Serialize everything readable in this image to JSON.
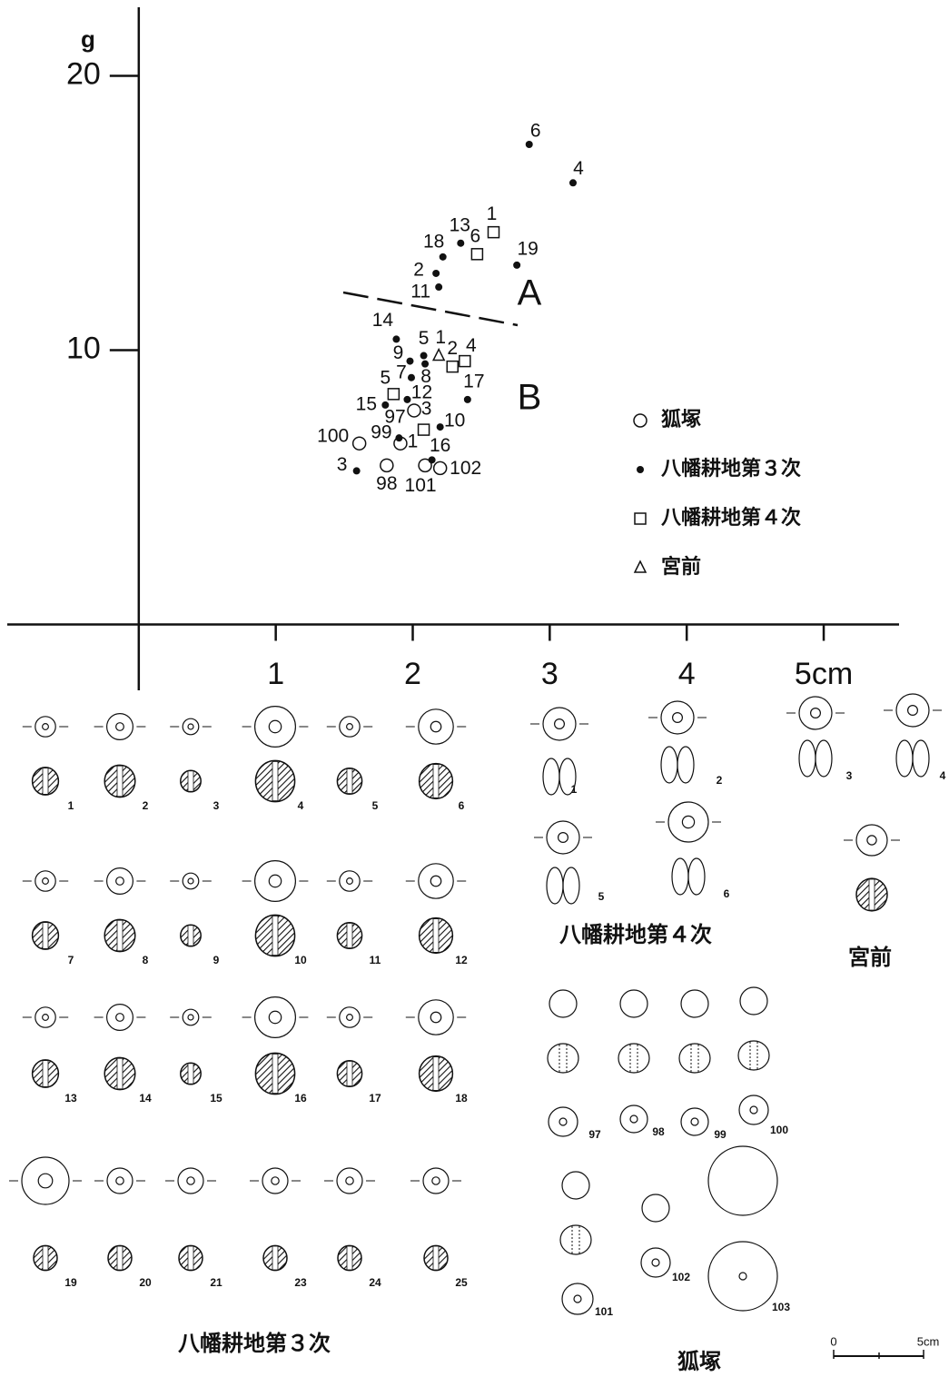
{
  "chart_data": {
    "type": "scatter",
    "y_label": "g",
    "xlim": [
      -0.96,
      5.55
    ],
    "ylim": [
      -2.4,
      22.5
    ],
    "xticks": [
      1,
      2,
      3,
      4,
      {
        "value": 5,
        "label": "5cm"
      }
    ],
    "yticks": [
      10,
      20
    ],
    "annotations": [
      "A",
      "B"
    ],
    "series": [
      {
        "name": "狐塚",
        "marker": "circle-open",
        "color": "#111",
        "x": [
          2.01,
          1.81,
          1.91,
          1.61,
          2.09,
          2.2
        ],
        "y": [
          7.8,
          5.8,
          6.6,
          6.6,
          5.8,
          5.7
        ],
        "labels": [
          "97",
          "98",
          "99",
          "100",
          "101",
          "102"
        ]
      },
      {
        "name": "八幡耕地第３次",
        "marker": "dot",
        "color": "#111",
        "x": [
          1.9,
          2.17,
          1.59,
          3.17,
          2.08,
          2.85,
          1.99,
          2.09,
          1.98,
          2.2,
          2.19,
          1.96,
          2.35,
          1.88,
          1.8,
          2.14,
          2.4,
          2.22,
          2.76
        ],
        "y": [
          6.8,
          12.8,
          5.6,
          16.1,
          9.8,
          17.5,
          9.0,
          9.5,
          9.6,
          7.2,
          12.3,
          8.2,
          13.9,
          10.4,
          8.0,
          6.0,
          8.2,
          13.4,
          13.1
        ],
        "labels": [
          "1",
          "2",
          "3",
          "4",
          "5",
          "6",
          "7",
          "8",
          "9",
          "10",
          "11",
          "12",
          "13",
          "14",
          "15",
          "16",
          "17",
          "18",
          "19"
        ]
      },
      {
        "name": "八幡耕地第４次",
        "marker": "square-open",
        "color": "#111",
        "x": [
          2.59,
          2.29,
          2.08,
          2.38,
          1.86,
          2.47
        ],
        "y": [
          14.3,
          9.4,
          7.1,
          9.6,
          8.4,
          13.5
        ],
        "labels": [
          "1",
          "2",
          "3",
          "4",
          "5",
          "6"
        ]
      },
      {
        "name": "宮前",
        "marker": "triangle-open",
        "color": "#111",
        "x": [
          2.19
        ],
        "y": [
          9.8
        ],
        "labels": [
          "1"
        ]
      }
    ]
  },
  "figures": {
    "yawata3": {
      "title": "八幡耕地第３次",
      "items": [
        "1",
        "2",
        "3",
        "4",
        "5",
        "6",
        "7",
        "8",
        "9",
        "10",
        "11",
        "12",
        "13",
        "14",
        "15",
        "16",
        "17",
        "18",
        "19",
        "20",
        "21",
        "23",
        "24",
        "25"
      ]
    },
    "yawata4": {
      "title": "八幡耕地第４次",
      "items": [
        "1",
        "2",
        "3",
        "4",
        "5",
        "6"
      ]
    },
    "miyamae": {
      "title": "宮前"
    },
    "kitsunezuka": {
      "title": "狐塚",
      "items": [
        "97",
        "98",
        "99",
        "100",
        "101",
        "102",
        "103"
      ]
    },
    "scale": {
      "start": "0",
      "end": "5cm"
    }
  }
}
